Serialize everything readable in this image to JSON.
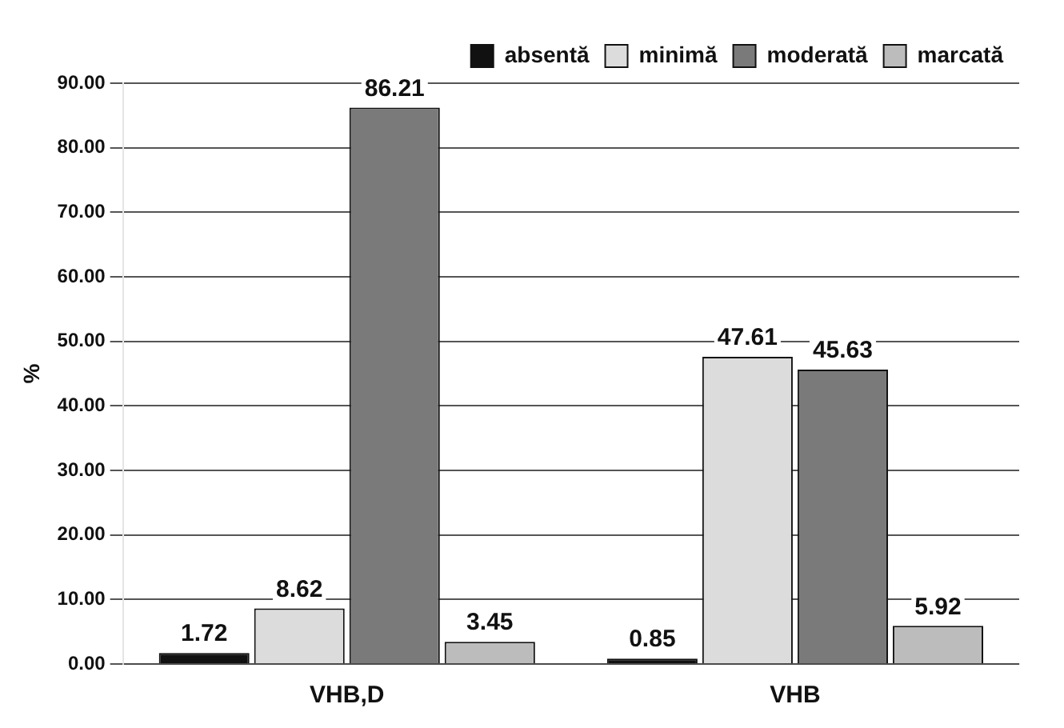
{
  "chart_data": {
    "type": "bar",
    "ylabel": "%",
    "categories": [
      "VHB,D",
      "VHB"
    ],
    "series": [
      {
        "name": "absentă",
        "color": "#111111",
        "values": [
          1.72,
          0.85
        ]
      },
      {
        "name": "minimă",
        "color": "#dcdcdc",
        "values": [
          8.62,
          47.61
        ]
      },
      {
        "name": "moderată",
        "color": "#7a7a7a",
        "values": [
          86.21,
          45.63
        ]
      },
      {
        "name": "marcată",
        "color": "#bcbcbc",
        "values": [
          3.45,
          5.92
        ]
      }
    ],
    "ylim": [
      0,
      90
    ],
    "yticks": [
      {
        "value": 0,
        "label": "0.00"
      },
      {
        "value": 10,
        "label": "10.00"
      },
      {
        "value": 20,
        "label": "20.00"
      },
      {
        "value": 30,
        "label": "30.00"
      },
      {
        "value": 40,
        "label": "40.00"
      },
      {
        "value": 50,
        "label": "50.00"
      },
      {
        "value": 60,
        "label": "60.00"
      },
      {
        "value": 70,
        "label": "70.00"
      },
      {
        "value": 80,
        "label": "80.00"
      },
      {
        "value": 90,
        "label": "90.00"
      }
    ],
    "grid": "y",
    "legend": "top right",
    "data_labels": true
  }
}
